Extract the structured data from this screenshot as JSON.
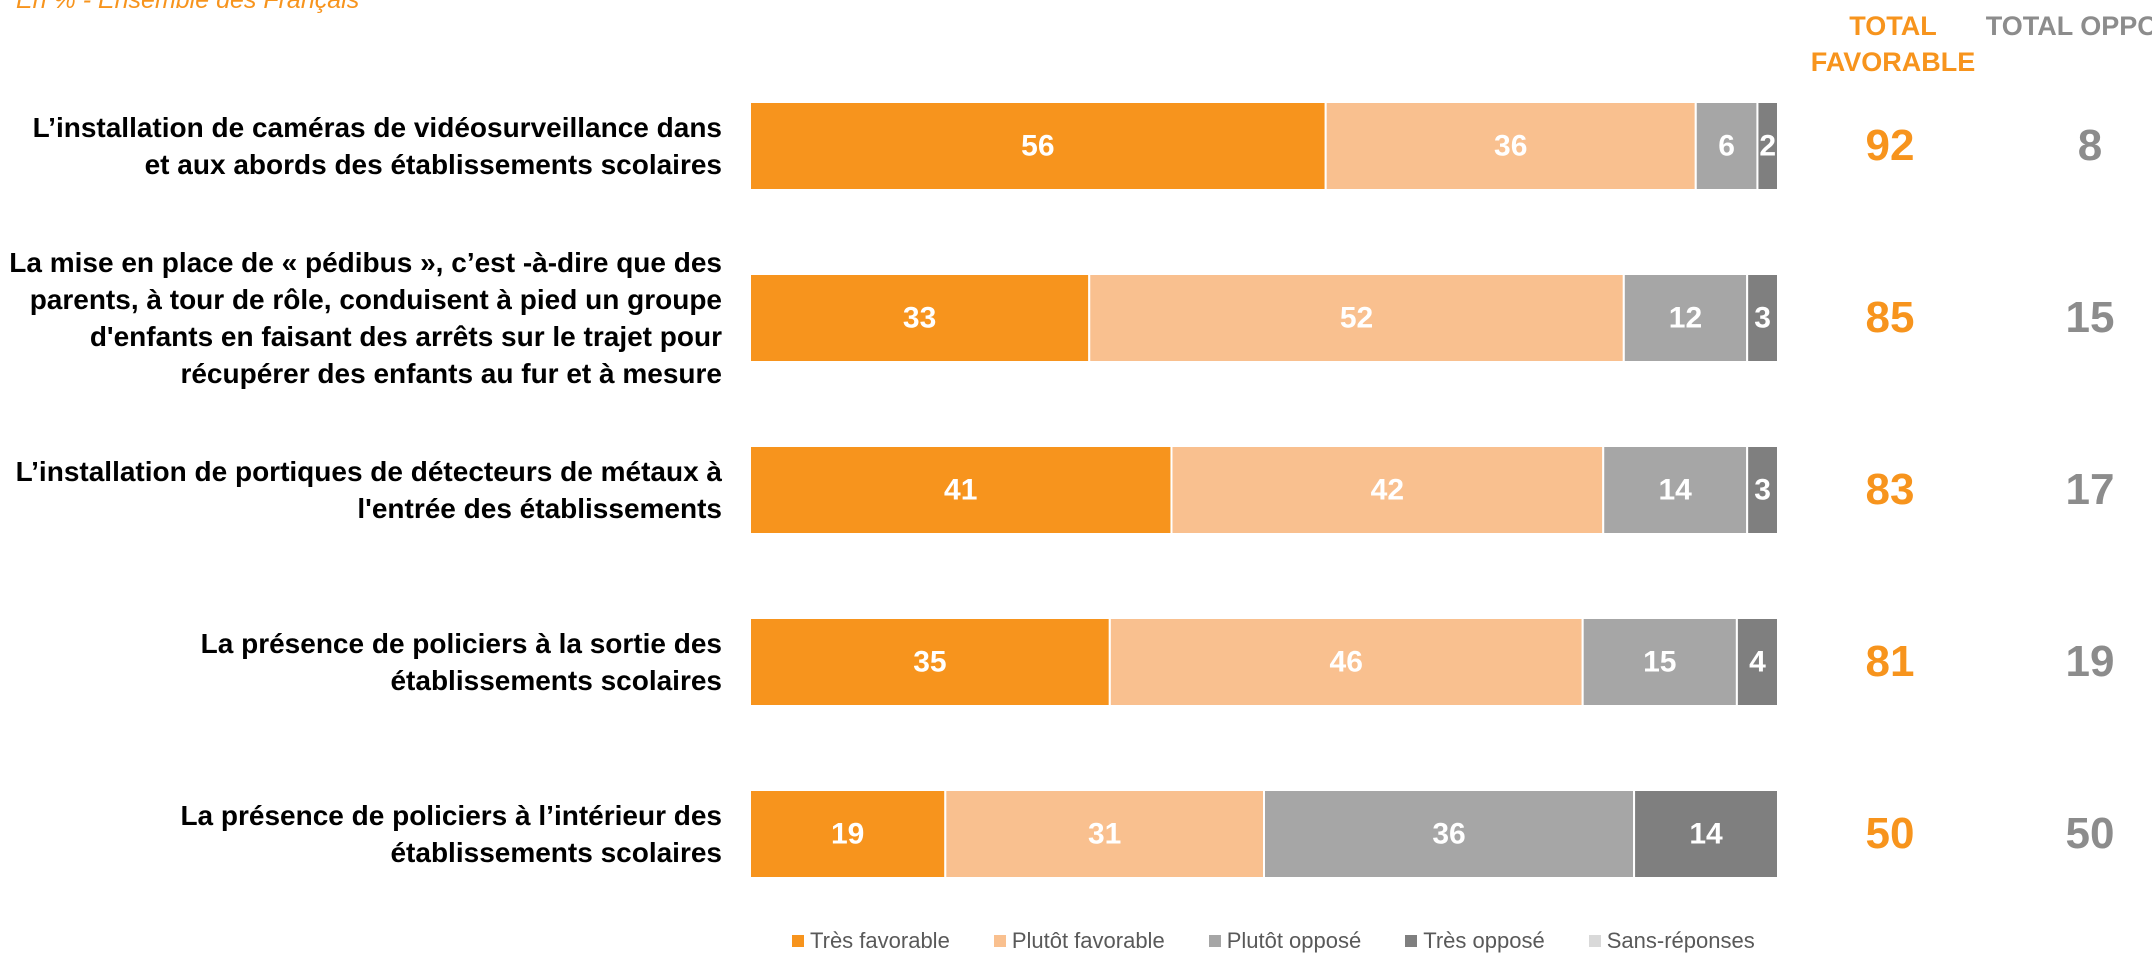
{
  "subtitle": "En % - Ensemble des Français",
  "headers": {
    "total_favorable": "TOTAL FAVORABLE",
    "total_oppose": "TOTAL OPPOSE"
  },
  "colors": {
    "tres_favorable": "#F7941D",
    "plutot_favorable": "#F9C08F",
    "plutot_oppose": "#A6A6A6",
    "tres_oppose": "#7F7F7F",
    "sans_reponses": "#D9D9D9",
    "total_favorable": "#F7941D",
    "total_oppose": "#8C8C8C"
  },
  "rows": [
    {
      "label": "L’installation de caméras de vidéosurveillance dans et aux abords des établissements scolaires",
      "total_favorable": "92",
      "total_oppose": "8"
    },
    {
      "label": "La mise en place de « pédibus », c’est -à-dire que des parents, à tour de rôle, conduisent à pied un groupe d'enfants en faisant des arrêts sur le trajet pour récupérer des enfants au fur et à mesure",
      "total_favorable": "85",
      "total_oppose": "15"
    },
    {
      "label": "L’installation de portiques de détecteurs de métaux à l'entrée des établissements",
      "total_favorable": "83",
      "total_oppose": "17"
    },
    {
      "label": "La présence de policiers à la sortie des établissements scolaires",
      "total_favorable": "81",
      "total_oppose": "19"
    },
    {
      "label": "La présence de policiers à l’intérieur des établissements scolaires",
      "total_favorable": "50",
      "total_oppose": "50"
    }
  ],
  "legend": [
    "Très favorable",
    "Plutôt favorable",
    "Plutôt opposé",
    "Très opposé",
    "Sans-réponses"
  ],
  "chart_data": {
    "type": "bar",
    "orientation": "horizontal",
    "stacked": true,
    "categories": [
      "L’installation de caméras de vidéosurveillance dans et aux abords des établissements scolaires",
      "La mise en place de « pédibus », c’est -à-dire que des parents, à tour de rôle, conduisent à pied un groupe d'enfants en faisant des arrêts sur le trajet pour récupérer des enfants au fur et à mesure",
      "L’installation de portiques de détecteurs de métaux à l'entrée des établissements",
      "La présence de policiers à la sortie des établissements scolaires",
      "La présence de policiers à l’intérieur des établissements scolaires"
    ],
    "series": [
      {
        "name": "Très favorable",
        "values": [
          56,
          33,
          41,
          35,
          19
        ]
      },
      {
        "name": "Plutôt favorable",
        "values": [
          36,
          52,
          42,
          46,
          31
        ]
      },
      {
        "name": "Plutôt opposé",
        "values": [
          6,
          12,
          14,
          15,
          36
        ]
      },
      {
        "name": "Très opposé",
        "values": [
          2,
          3,
          3,
          4,
          14
        ]
      },
      {
        "name": "Sans-réponses",
        "values": [
          0,
          0,
          0,
          0,
          0
        ]
      }
    ],
    "xlim": [
      0,
      100
    ],
    "legend_position": "bottom"
  }
}
